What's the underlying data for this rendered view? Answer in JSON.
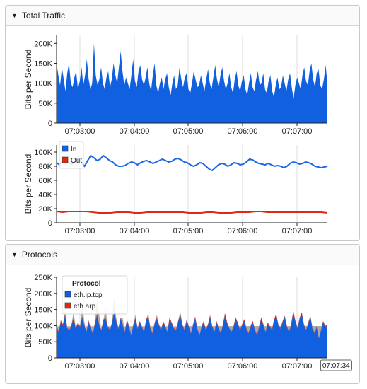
{
  "panels": {
    "traffic": {
      "title": "Total Traffic"
    },
    "protocols": {
      "title": "Protocols"
    }
  },
  "colors": {
    "blue": "#1060e0",
    "red": "#e02a10",
    "gray": "#aaaaaa",
    "line_blue": "#1a66e8",
    "line_red": "#e02a10"
  },
  "chart_data": [
    {
      "type": "area",
      "ylabel": "Bits per Second",
      "ylim": [
        0,
        220000
      ],
      "yticks": [
        0,
        50000,
        100000,
        150000,
        200000
      ],
      "ytick_labels": [
        "0",
        "50K",
        "100K",
        "150K",
        "200K"
      ],
      "xlim": [
        0,
        300
      ],
      "xtick_labels": [
        "07:03:00",
        "07:04:00",
        "07:05:00",
        "07:06:00",
        "07:07:00"
      ],
      "series": [
        {
          "values": [
            150000,
            120000,
            95000,
            140000,
            110000,
            80000,
            125000,
            150000,
            100000,
            90000,
            115000,
            130000,
            85000,
            105000,
            140000,
            95000,
            120000,
            160000,
            110000,
            85000,
            100000,
            200000,
            120000,
            95000,
            110000,
            140000,
            100000,
            85000,
            115000,
            130000,
            90000,
            110000,
            150000,
            120000,
            100000,
            140000,
            180000,
            130000,
            95000,
            115000,
            100000,
            85000,
            120000,
            160000,
            105000,
            90000,
            130000,
            145000,
            110000,
            95000,
            115000,
            140000,
            100000,
            80000,
            120000,
            150000,
            95000,
            75000,
            100000,
            115000,
            85000,
            110000,
            125000,
            90000,
            70000,
            100000,
            120000,
            85000,
            95000,
            140000,
            110000,
            90000,
            115000,
            125000,
            85000,
            75000,
            100000,
            130000,
            110000,
            90000,
            95000,
            120000,
            100000,
            80000,
            110000,
            135000,
            100000,
            85000,
            115000,
            145000,
            110000,
            90000,
            120000,
            140000,
            105000,
            85000,
            100000,
            125000,
            90000,
            75000,
            110000,
            130000,
            95000,
            80000,
            105000,
            120000,
            85000,
            70000,
            100000,
            125000,
            90000,
            80000,
            110000,
            130000,
            95000,
            100000,
            125000,
            85000,
            75000,
            105000,
            120000,
            80000,
            65000,
            95000,
            115000,
            85000,
            90000,
            120000,
            100000,
            80000,
            110000,
            125000,
            90000,
            60000,
            95000,
            115000,
            100000,
            85000,
            120000,
            140000,
            105000,
            95000,
            130000,
            150000,
            110000,
            90000,
            125000,
            135000,
            95000,
            85000,
            110000,
            145000,
            100000
          ]
        }
      ]
    },
    {
      "type": "line",
      "ylabel": "Bits per Second",
      "ylim": [
        0,
        110000
      ],
      "yticks": [
        0,
        20000,
        40000,
        60000,
        80000,
        100000
      ],
      "ytick_labels": [
        "0",
        "20K",
        "40K",
        "60K",
        "80K",
        "100K"
      ],
      "xlim": [
        0,
        300
      ],
      "xtick_labels": [
        "07:03:00",
        "07:04:00",
        "07:05:00",
        "07:06:00",
        "07:07:00"
      ],
      "legend": "top-left",
      "series": [
        {
          "name": "In",
          "values": [
            85000,
            82000,
            90000,
            88000,
            85000,
            83000,
            86000,
            92000,
            85000,
            80000,
            88000,
            95000,
            92000,
            88000,
            90000,
            95000,
            92000,
            88000,
            86000,
            82000,
            80000,
            80000,
            81000,
            84000,
            86000,
            85000,
            82000,
            85000,
            87000,
            88000,
            86000,
            84000,
            86000,
            88000,
            90000,
            88000,
            86000,
            87000,
            90000,
            91000,
            89000,
            86000,
            85000,
            82000,
            80000,
            82000,
            85000,
            84000,
            80000,
            76000,
            74000,
            78000,
            82000,
            84000,
            83000,
            80000,
            82000,
            85000,
            84000,
            82000,
            83000,
            86000,
            90000,
            89000,
            86000,
            84000,
            83000,
            82000,
            84000,
            82000,
            80000,
            81000,
            80000,
            78000,
            80000,
            84000,
            86000,
            85000,
            83000,
            84000,
            86000,
            85000,
            83000,
            80000,
            79000,
            78000,
            79000,
            80000
          ]
        },
        {
          "name": "Out",
          "values": [
            16000,
            15000,
            16000,
            16000,
            16000,
            16000,
            15000,
            14000,
            14000,
            14000,
            15000,
            15000,
            15000,
            14000,
            14000,
            15000,
            15000,
            15000,
            15000,
            15000,
            15000,
            15000,
            14000,
            14000,
            14000,
            15000,
            15000,
            14000,
            14000,
            14000,
            15000,
            15000,
            15000,
            16000,
            16000,
            15000,
            15000,
            15000,
            15000,
            15000,
            15000,
            15000,
            15000,
            15000,
            15000,
            14000
          ]
        }
      ]
    },
    {
      "type": "area",
      "ylabel": "Bits per Second",
      "ylim": [
        0,
        250000
      ],
      "yticks": [
        0,
        50000,
        100000,
        150000,
        200000,
        250000
      ],
      "ytick_labels": [
        "0",
        "50K",
        "100K",
        "150K",
        "200K",
        "250K"
      ],
      "xlim": [
        0,
        300
      ],
      "xtick_labels": [
        "07:03:00",
        "07:04:00",
        "07:05:00",
        "07:06:00",
        "07:07:00"
      ],
      "legend": "top-left",
      "legend_title": "Protocol",
      "tooltip_label": "07:07:34",
      "tooltip_x": 294,
      "series": [
        {
          "name": "eth.ip.tcp",
          "values": [
            95000,
            80000,
            110000,
            100000,
            130000,
            90000,
            85000,
            100000,
            120000,
            90000,
            105000,
            95000,
            125000,
            100000,
            80000,
            110000,
            90000,
            75000,
            105000,
            130000,
            100000,
            85000,
            115000,
            120000,
            95000,
            85000,
            105000,
            140000,
            110000,
            90000,
            120000,
            100000,
            80000,
            115000,
            95000,
            70000,
            100000,
            120000,
            90000,
            110000,
            95000,
            80000,
            115000,
            125000,
            90000,
            75000,
            105000,
            120000,
            100000,
            85000,
            110000,
            95000,
            80000,
            120000,
            105000,
            90000,
            85000,
            110000,
            130000,
            100000,
            85000,
            115000,
            95000,
            75000,
            100000,
            120000,
            90000,
            70000,
            95000,
            110000,
            85000,
            100000,
            125000,
            95000,
            80000,
            110000,
            90000,
            75000,
            100000,
            130000,
            105000,
            90000,
            80000,
            95000,
            120000,
            105000,
            85000,
            100000,
            115000,
            90000,
            75000,
            95000,
            110000,
            85000,
            70000,
            95000,
            120000,
            100000,
            80000,
            105000,
            95000,
            85000,
            115000,
            130000,
            100000,
            90000,
            110000,
            125000,
            95000,
            80000,
            100000,
            140000,
            110000,
            90000,
            120000,
            135000,
            100000,
            85000,
            105000,
            125000,
            90000,
            75000,
            95000,
            60000,
            85000,
            110000,
            95000,
            100000
          ]
        },
        {
          "name": "eth.arp",
          "values": [
            3000,
            3000,
            4000,
            4000,
            5000,
            3000,
            3000,
            4000,
            4000,
            3000,
            4000,
            3000,
            4000,
            3000,
            3000,
            4000,
            3000,
            3000,
            4000,
            5000,
            4000,
            3000,
            4000,
            4000,
            3000,
            3000,
            4000,
            5000,
            4000,
            3000,
            4000,
            4000,
            3000,
            4000,
            3000,
            3000,
            4000,
            4000,
            3000,
            4000,
            3000,
            3000,
            4000,
            5000,
            3000,
            3000,
            4000,
            4000,
            4000,
            3000,
            4000,
            3000,
            3000,
            5000,
            4000,
            3000,
            3000,
            4000,
            5000,
            4000,
            3000,
            4000,
            3000,
            3000,
            4000,
            5000,
            3000,
            3000,
            3000,
            4000,
            3000,
            4000,
            5000,
            4000,
            3000,
            4000,
            3000,
            3000,
            4000,
            6000,
            4000,
            3000,
            3000,
            4000,
            5000,
            4000,
            3000,
            4000,
            5000,
            3000,
            3000,
            4000,
            5000,
            3000,
            3000,
            4000,
            5000,
            4000,
            3000,
            4000,
            4000,
            3000,
            5000,
            6000,
            4000,
            3000,
            4000,
            5000,
            4000,
            3000,
            4000,
            6000,
            4000,
            3000,
            5000,
            6000,
            4000,
            3000,
            4000,
            5000,
            3000,
            3000,
            4000,
            3000,
            3000,
            4000,
            4000,
            4000
          ]
        },
        {
          "name": "",
          "values": [
            0,
            0,
            5000,
            0,
            10000,
            0,
            0,
            0,
            20000,
            0,
            0,
            0,
            40000,
            10000,
            0,
            5000,
            0,
            0,
            0,
            50000,
            30000,
            0,
            0,
            30000,
            0,
            0,
            0,
            40000,
            10000,
            0,
            0,
            20000,
            0,
            0,
            0,
            0,
            0,
            10000,
            0,
            0,
            0,
            0,
            0,
            10000,
            0,
            0,
            0,
            10000,
            0,
            0,
            0,
            0,
            0,
            0,
            0,
            0,
            0,
            0,
            10000,
            0,
            0,
            0,
            0,
            0,
            0,
            5000,
            0,
            0,
            0,
            0,
            0,
            0,
            5000,
            0,
            0,
            0,
            0,
            0,
            0,
            5000,
            0,
            0,
            0,
            0,
            0,
            0,
            0,
            0,
            0,
            0,
            0,
            0,
            0,
            0,
            0,
            0,
            0,
            0,
            0,
            0,
            0,
            0,
            0,
            0,
            0,
            0,
            0,
            0,
            0,
            0,
            0,
            0,
            0,
            0,
            0,
            0,
            0,
            0,
            0,
            0,
            0,
            0,
            0,
            0,
            0,
            0,
            0
          ]
        }
      ]
    }
  ]
}
